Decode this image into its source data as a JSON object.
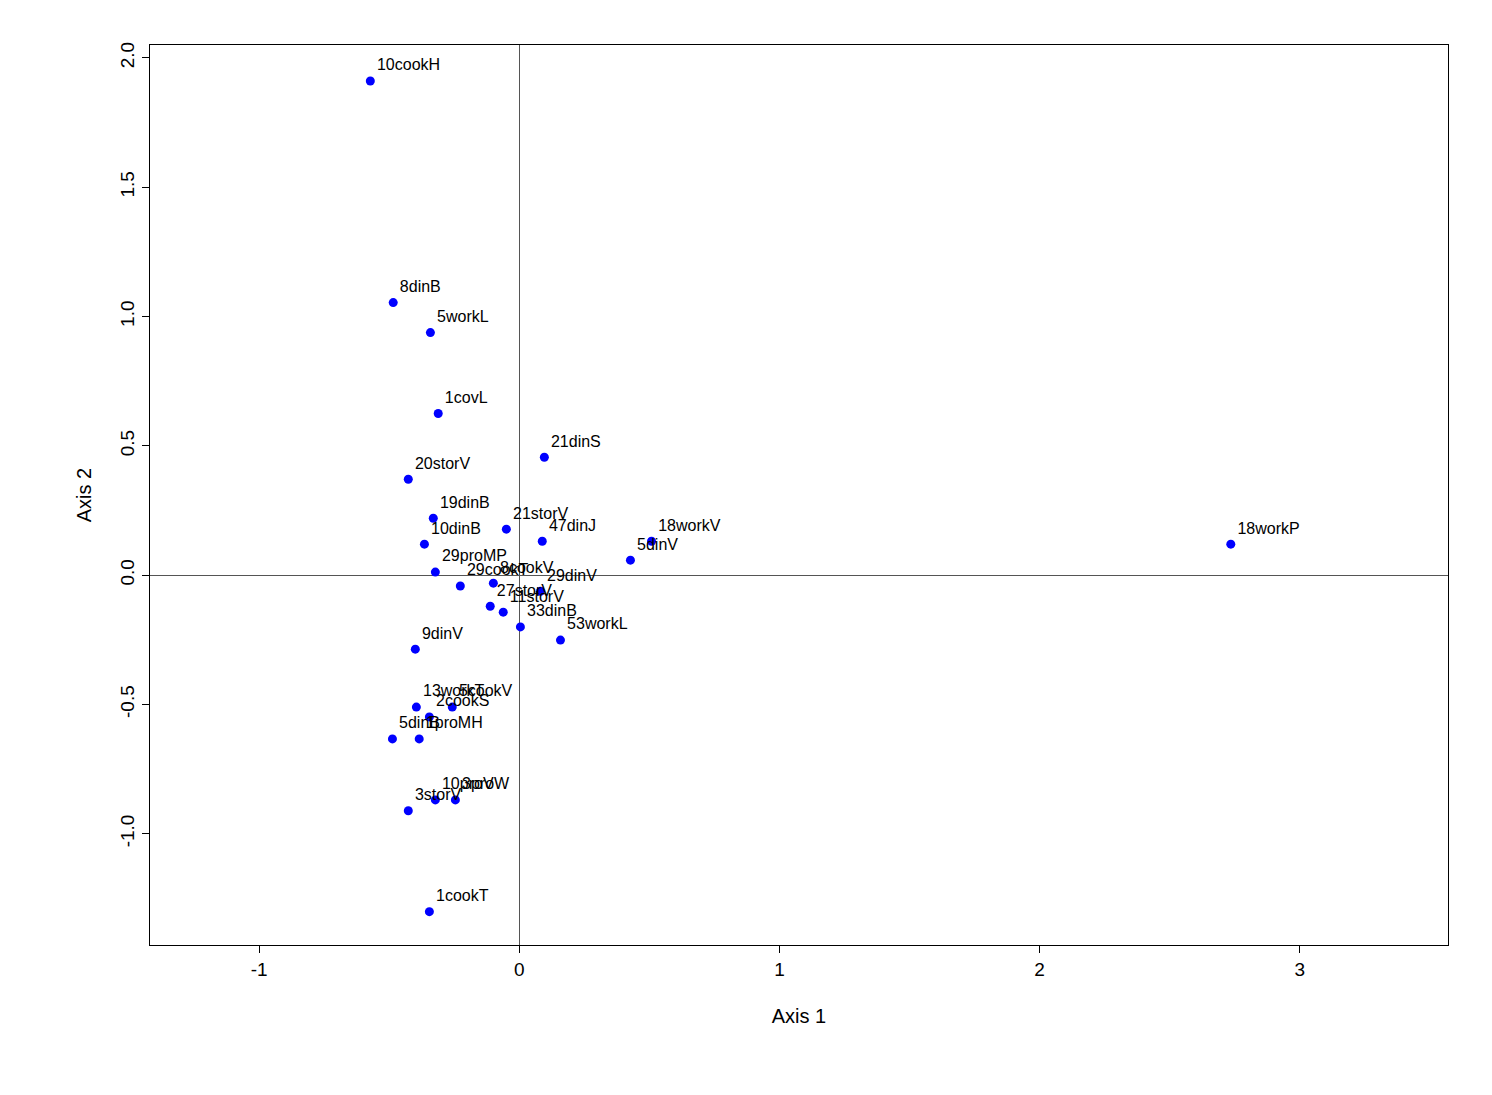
{
  "chart_data": {
    "type": "scatter",
    "x_label": "Axis 1",
    "y_label": "Axis 2",
    "color": "#0000ff",
    "marker": "circle",
    "labels": [
      "10cookH",
      "8dinB",
      "5workL",
      "1covL",
      "21dinS",
      "20storV",
      "19dinB",
      "21storV",
      "47dinJ",
      "18workV",
      "18workP",
      "10dinB",
      "5dinV",
      "29proMP",
      "29cookT",
      "8cookV",
      "29dinV",
      "27storV",
      "11storV",
      "33dinB",
      "53workL",
      "9dinV",
      "13workT",
      "5cookV",
      "2cookS",
      "5dinB",
      "1proMH",
      "10proV",
      "3proW",
      "3storV",
      "1cookT"
    ],
    "x": [
      -0.573,
      -0.485,
      -0.342,
      -0.312,
      0.096,
      -0.427,
      -0.331,
      -0.05,
      0.088,
      0.508,
      2.735,
      -0.365,
      0.427,
      -0.323,
      -0.227,
      -0.1,
      0.081,
      -0.112,
      -0.062,
      0.004,
      0.158,
      -0.4,
      -0.396,
      -0.258,
      -0.346,
      -0.488,
      -0.385,
      -0.323,
      -0.246,
      -0.427,
      -0.346
    ],
    "y": [
      1.911,
      1.054,
      0.938,
      0.625,
      0.456,
      0.371,
      0.22,
      0.178,
      0.131,
      0.131,
      0.12,
      0.12,
      0.058,
      0.012,
      -0.042,
      -0.031,
      -0.062,
      -0.12,
      -0.143,
      -0.2,
      -0.251,
      -0.286,
      -0.51,
      -0.51,
      -0.548,
      -0.633,
      -0.633,
      -0.869,
      -0.869,
      -0.911,
      -1.301
    ],
    "xlim": [
      -1.42,
      3.57
    ],
    "ylim": [
      -1.43,
      2.05
    ],
    "xticks": [
      -1,
      0,
      1,
      2,
      3
    ],
    "yticks": [
      {
        "value": -1,
        "label": "-1.0"
      },
      {
        "value": -0.5,
        "label": "-0.5"
      },
      {
        "value": 0,
        "label": "0.0"
      },
      {
        "value": 0.5,
        "label": "0.5"
      },
      {
        "value": 1,
        "label": "1.0"
      },
      {
        "value": 1.5,
        "label": "1.5"
      },
      {
        "value": 2,
        "label": "2.0"
      }
    ],
    "grid": false
  }
}
